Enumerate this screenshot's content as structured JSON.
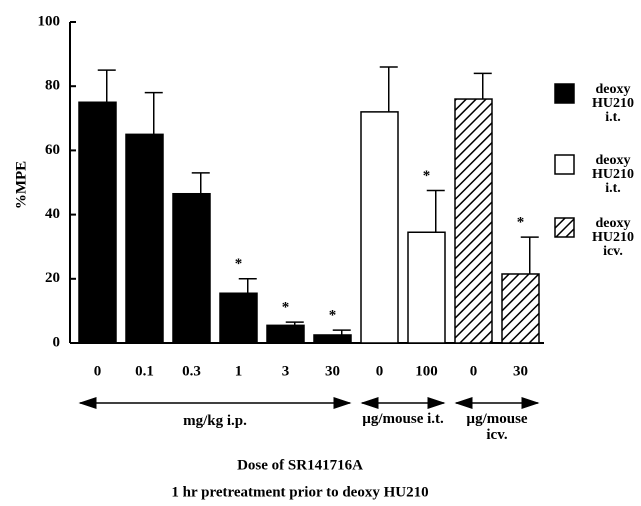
{
  "chart_data": {
    "type": "bar",
    "title": "Dose of SR141716A",
    "subtitle": "1 hr pretreatment prior to deoxy HU210",
    "y_label": "%MPE",
    "categories": [
      "0",
      "0.1",
      "0.3",
      "1",
      "3",
      "30",
      "0",
      "100",
      "0",
      "30"
    ],
    "series": [
      {
        "name": "deoxy HU210 i.t.",
        "group_label": "mg/kg  i.p.",
        "color": "#000000",
        "values": [
          75,
          65,
          46.5,
          15.5,
          5.5,
          2.5,
          null,
          null,
          null,
          null
        ],
        "errors": [
          10,
          13,
          6.5,
          4.5,
          1,
          1.5,
          null,
          null,
          null,
          null
        ]
      },
      {
        "name": "deoxy HU210 i.t.",
        "group_label": "µg/mouse i.t.",
        "color": "#ffffff",
        "values": [
          null,
          null,
          null,
          null,
          null,
          null,
          72,
          34.5,
          null,
          null
        ],
        "errors": [
          null,
          null,
          null,
          null,
          null,
          null,
          14,
          13,
          null,
          null
        ]
      },
      {
        "name": "deoxy HU210 icv.",
        "group_label": "µg/mouse icv.",
        "color": "#000000",
        "pattern": "hatch",
        "values": [
          null,
          null,
          null,
          null,
          null,
          null,
          null,
          null,
          76,
          21.5
        ],
        "errors": [
          null,
          null,
          null,
          null,
          null,
          null,
          null,
          null,
          8,
          11.5
        ]
      }
    ],
    "significance": [
      null,
      null,
      null,
      "*",
      "*",
      "*",
      null,
      "*",
      null,
      "*"
    ],
    "ylim": [
      0,
      100
    ],
    "yticks": [
      0,
      20,
      40,
      60,
      80,
      100
    ],
    "legend": "right"
  }
}
